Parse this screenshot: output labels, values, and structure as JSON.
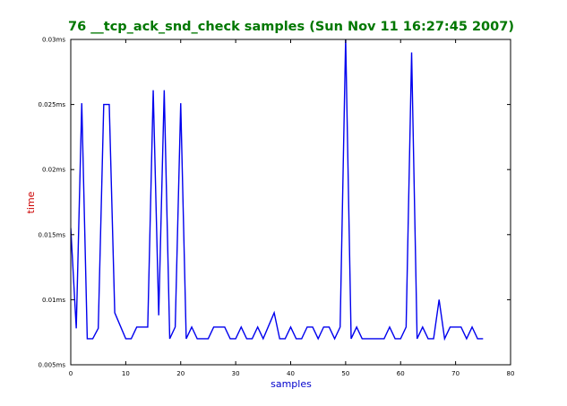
{
  "chart_data": {
    "type": "line",
    "title": "76 __tcp_ack_snd_check samples (Sun Nov 11 16:27:45 2007)",
    "xlabel": "samples",
    "ylabel": "time",
    "xlim": [
      0,
      80
    ],
    "ylim": [
      0.005,
      0.03
    ],
    "x_ticks": [
      0,
      10,
      20,
      30,
      40,
      50,
      60,
      70,
      80
    ],
    "x_tick_labels": [
      "0",
      "10",
      "20",
      "30",
      "40",
      "50",
      "60",
      "70",
      "80"
    ],
    "y_ticks": [
      0.005,
      0.01,
      0.015,
      0.02,
      0.025,
      0.03
    ],
    "y_tick_labels": [
      "0.005ms",
      "0.01ms",
      "0.015ms",
      "0.02ms",
      "0.025ms",
      "0.03ms"
    ],
    "grid": false,
    "legend": "none",
    "colors": {
      "title": "#007700",
      "ylabel": "#cc0000",
      "xlabel": "#0000cc",
      "line": "#0000ee"
    },
    "series": [
      {
        "x": [
          0,
          1,
          2,
          3,
          4,
          5,
          6,
          7,
          8,
          9,
          10,
          11,
          12,
          13,
          14,
          15,
          16,
          17,
          18,
          19,
          20,
          21,
          22,
          23,
          24,
          25,
          26,
          27,
          28,
          29,
          30,
          31,
          32,
          33,
          34,
          35,
          36,
          37,
          38,
          39,
          40,
          41,
          42,
          43,
          44,
          45,
          46,
          47,
          48,
          49,
          50,
          51,
          52,
          53,
          54,
          55,
          56,
          57,
          58,
          59,
          60,
          61,
          62,
          63,
          64,
          65,
          66,
          67,
          68,
          69,
          70,
          71,
          72,
          73,
          74,
          75
        ],
        "values": [
          0.0155,
          0.0078,
          0.0251,
          0.007,
          0.007,
          0.0078,
          0.025,
          0.025,
          0.009,
          0.008,
          0.007,
          0.007,
          0.0079,
          0.0079,
          0.0079,
          0.0261,
          0.0088,
          0.0261,
          0.007,
          0.0079,
          0.0251,
          0.007,
          0.0079,
          0.007,
          0.007,
          0.007,
          0.0079,
          0.0079,
          0.0079,
          0.007,
          0.007,
          0.0079,
          0.007,
          0.007,
          0.0079,
          0.007,
          0.008,
          0.009,
          0.007,
          0.007,
          0.0079,
          0.007,
          0.007,
          0.0079,
          0.0079,
          0.007,
          0.0079,
          0.0079,
          0.007,
          0.0079,
          0.0301,
          0.007,
          0.0079,
          0.007,
          0.007,
          0.007,
          0.007,
          0.007,
          0.0079,
          0.007,
          0.007,
          0.0079,
          0.029,
          0.007,
          0.0079,
          0.007,
          0.007,
          0.01,
          0.007,
          0.0079,
          0.0079,
          0.0079,
          0.007,
          0.0079,
          0.007,
          0.007
        ]
      }
    ]
  }
}
